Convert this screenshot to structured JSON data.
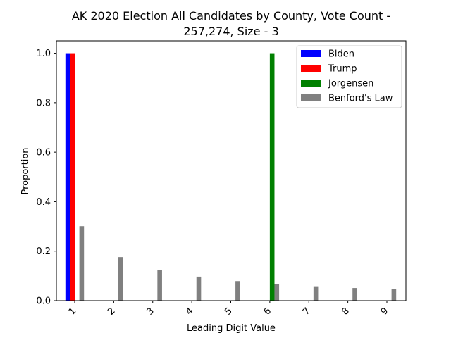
{
  "chart_data": {
    "type": "bar",
    "title_lines": [
      "AK 2020 Election All Candidates by County, Vote Count -",
      "257,274, Size - 3"
    ],
    "xlabel": "Leading Digit Value",
    "ylabel": "Proportion",
    "categories": [
      "1",
      "2",
      "3",
      "4",
      "5",
      "6",
      "7",
      "8",
      "9"
    ],
    "ylim": [
      0,
      1.05
    ],
    "yticks": [
      "0.0",
      "0.2",
      "0.4",
      "0.6",
      "0.8",
      "1.0"
    ],
    "grid": false,
    "legend_position": "top-right",
    "series": [
      {
        "name": "Biden",
        "color": "#0000ff",
        "values": [
          1.0,
          0,
          0,
          0,
          0,
          0,
          0,
          0,
          0
        ]
      },
      {
        "name": "Trump",
        "color": "#ff0000",
        "values": [
          1.0,
          0,
          0,
          0,
          0,
          0,
          0,
          0,
          0
        ]
      },
      {
        "name": "Jorgensen",
        "color": "#008000",
        "values": [
          0,
          0,
          0,
          0,
          0,
          1.0,
          0,
          0,
          0
        ]
      },
      {
        "name": "Benford's Law",
        "color": "#808080",
        "values": [
          0.301,
          0.176,
          0.125,
          0.097,
          0.079,
          0.067,
          0.058,
          0.051,
          0.046
        ]
      }
    ]
  }
}
